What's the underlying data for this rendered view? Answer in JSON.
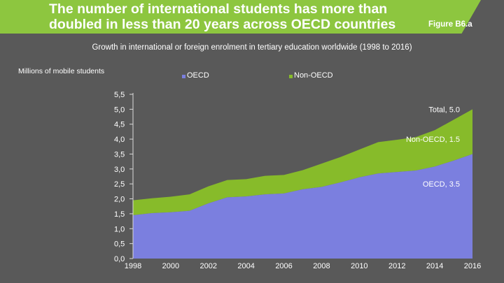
{
  "header": {
    "title": "The number of international students has more than doubled in less than 20 years across OECD countries",
    "figure_label": "Figure B6.a"
  },
  "colors": {
    "background": "#595959",
    "banner": "#8dc63f",
    "oecd": "#7b7fdf",
    "non_oecd": "#87bb2a"
  },
  "chart_data": {
    "type": "area",
    "stacked": true,
    "title": "Growth in international or foreign enrolment in tertiary education worldwide (1998 to 2016)",
    "xlabel": "",
    "ylabel": "Millions of mobile students",
    "x": [
      1998,
      1999,
      2000,
      2001,
      2002,
      2003,
      2004,
      2005,
      2006,
      2007,
      2008,
      2009,
      2010,
      2011,
      2012,
      2013,
      2014,
      2015,
      2016
    ],
    "x_ticks": [
      "1998",
      "2000",
      "2002",
      "2004",
      "2006",
      "2008",
      "2010",
      "2012",
      "2014",
      "2016"
    ],
    "y_ticks": [
      "0,0",
      "0,5",
      "1,0",
      "1,5",
      "2,0",
      "2,5",
      "3,0",
      "3,5",
      "4,0",
      "4,5",
      "5,0",
      "5,5"
    ],
    "ylim": [
      0,
      5.5
    ],
    "series": [
      {
        "name": "OECD",
        "values": [
          1.45,
          1.52,
          1.55,
          1.6,
          1.85,
          2.05,
          2.08,
          2.15,
          2.18,
          2.32,
          2.4,
          2.55,
          2.72,
          2.85,
          2.9,
          2.95,
          3.08,
          3.28,
          3.5
        ]
      },
      {
        "name": "Non-OECD",
        "values": [
          0.5,
          0.5,
          0.52,
          0.55,
          0.57,
          0.58,
          0.58,
          0.62,
          0.62,
          0.64,
          0.78,
          0.85,
          0.93,
          1.05,
          1.08,
          1.12,
          1.22,
          1.37,
          1.5
        ]
      }
    ],
    "annotations": [
      {
        "text": "Total, 5.0",
        "x": 2016,
        "y": 5.0
      },
      {
        "text": "Non-OECD, 1.5",
        "x": 2016,
        "y": 4.0
      },
      {
        "text": "OECD, 3.5",
        "x": 2016,
        "y": 2.5
      }
    ],
    "legend": {
      "placement": "top"
    }
  }
}
